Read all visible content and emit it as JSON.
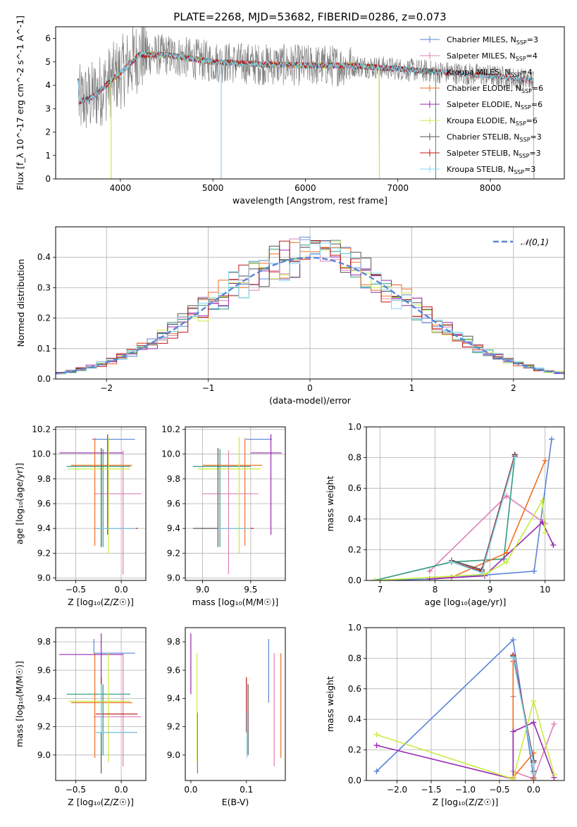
{
  "title": "PLATE=2268, MJD=53682, FIBERID=0286, z=0.073",
  "colors": {
    "Chabrier MILES": "#5b84d8",
    "Salpeter MILES": "#e080b8",
    "Kroupa MILES": "#2f9a80",
    "Chabrier ELODIE": "#f07020",
    "Salpeter ELODIE": "#9a28b0",
    "Kroupa ELODIE": "#c8ec40",
    "Chabrier STELIB": "#555555",
    "Salpeter STELIB": "#c01818",
    "Kroupa STELIB": "#80d8f0",
    "data": "#808080",
    "gaussian": "#5b84d8",
    "grid": "#b0b0b0"
  },
  "chart_data": [
    {
      "id": "spectrum",
      "type": "line",
      "xlabel": "wavelength [Angstrom, rest frame]",
      "ylabel": "Flux [f_λ 10^-17 erg cm^-2 s^-1 A^-1]",
      "xlim": [
        3300,
        8800
      ],
      "ylim": [
        0,
        6.5
      ],
      "xticks": [
        4000,
        5000,
        6000,
        7000,
        8000
      ],
      "yticks": [
        0,
        1,
        2,
        3,
        4,
        5,
        6
      ],
      "grid": false,
      "legend_position": "upper-right",
      "legend": [
        {
          "label": "Chabrier MILES, N",
          "sub": "SSP",
          "n": "=3"
        },
        {
          "label": "Salpeter MILES, N",
          "sub": "SSP",
          "n": "=4"
        },
        {
          "label": "Kroupa MILES, N",
          "sub": "SSP",
          "n": "=4"
        },
        {
          "label": "Chabrier ELODIE, N",
          "sub": "SSP",
          "n": "=6"
        },
        {
          "label": "Salpeter ELODIE, N",
          "sub": "SSP",
          "n": "=6"
        },
        {
          "label": "Kroupa ELODIE, N",
          "sub": "SSP",
          "n": "=6"
        },
        {
          "label": "Chabrier STELIB, N",
          "sub": "SSP",
          "n": "=3"
        },
        {
          "label": "Salpeter STELIB, N",
          "sub": "SSP",
          "n": "=3"
        },
        {
          "label": "Kroupa STELIB, N",
          "sub": "SSP",
          "n": "=3"
        }
      ],
      "data_range": [
        3550,
        8470
      ],
      "continuum": [
        [
          3550,
          3.3
        ],
        [
          3700,
          3.5
        ],
        [
          3900,
          4.2
        ],
        [
          4050,
          4.7
        ],
        [
          4200,
          5.3
        ],
        [
          4500,
          5.3
        ],
        [
          5000,
          5.0
        ],
        [
          5500,
          4.9
        ],
        [
          6000,
          4.85
        ],
        [
          6500,
          4.85
        ],
        [
          7000,
          4.7
        ],
        [
          7500,
          4.55
        ],
        [
          8000,
          4.4
        ],
        [
          8470,
          4.2
        ]
      ],
      "model_ranges": {
        "MILES": [
          3540,
          7410
        ],
        "ELODIE": [
          3900,
          6800
        ],
        "STELIB": [
          3540,
          8470
        ]
      }
    },
    {
      "id": "residuals",
      "type": "histogram",
      "xlabel": "(data-model)/error",
      "ylabel": "Normed distribution",
      "xlim": [
        -2.5,
        2.5
      ],
      "ylim": [
        0,
        0.5
      ],
      "xticks": [
        -2,
        -1,
        0,
        1,
        2
      ],
      "yticks": [
        0.0,
        0.1,
        0.2,
        0.3,
        0.4
      ],
      "grid": true,
      "legend_label": "𝒩(0,1)",
      "legend_position": "upper-right",
      "bin_width": 0.1
    },
    {
      "id": "z-age",
      "type": "scatter",
      "xlabel": "Z [log₁₀(Z/Z☉)]",
      "ylabel": "age  [log₁₀(age/yr)]",
      "xlim": [
        -0.72,
        0.27
      ],
      "ylim": [
        8.98,
        10.22
      ],
      "xticks": [
        -0.5,
        0.0
      ],
      "yticks": [
        9.0,
        9.2,
        9.4,
        9.6,
        9.8,
        10.0,
        10.2
      ],
      "grid": true,
      "points": [
        {
          "model": "Chabrier MILES",
          "x": -0.1,
          "xe": [
            -0.32,
            0.15
          ],
          "y": 10.12,
          "ye": [
            10.12,
            10.12
          ]
        },
        {
          "model": "Salpeter MILES",
          "x": 0.02,
          "xe": [
            -0.3,
            0.22
          ],
          "y": 9.68,
          "ye": [
            9.03,
            10.03
          ]
        },
        {
          "model": "Kroupa MILES",
          "x": -0.2,
          "xe": [
            -0.6,
            0.1
          ],
          "y": 9.9,
          "ye": [
            9.25,
            10.04
          ]
        },
        {
          "model": "Chabrier ELODIE",
          "x": -0.29,
          "xe": [
            -0.55,
            0.12
          ],
          "y": 9.91,
          "ye": [
            9.26,
            10.13
          ]
        },
        {
          "model": "Salpeter ELODIE",
          "x": -0.15,
          "xe": [
            -0.68,
            0.02
          ],
          "y": 10.01,
          "ye": [
            9.35,
            10.16
          ]
        },
        {
          "model": "Kroupa ELODIE",
          "x": -0.14,
          "xe": [
            -0.58,
            0.1
          ],
          "y": 9.88,
          "ye": [
            9.2,
            10.14
          ]
        },
        {
          "model": "Chabrier STELIB",
          "x": -0.22,
          "xe": [
            -0.28,
            0.17
          ],
          "y": 9.4,
          "ye": [
            9.25,
            10.05
          ]
        },
        {
          "model": "Salpeter STELIB",
          "x": -0.22,
          "xe": [
            -0.28,
            0.18
          ],
          "y": 9.4,
          "ye": [
            9.4,
            9.4
          ]
        },
        {
          "model": "Kroupa STELIB",
          "x": -0.22,
          "xe": [
            -0.28,
            0.16
          ],
          "y": 9.4,
          "ye": [
            9.4,
            9.4
          ]
        }
      ]
    },
    {
      "id": "mass-age",
      "type": "scatter",
      "xlabel": "mass [log₁₀(M/M☉)]",
      "ylabel": "",
      "xlim": [
        8.82,
        9.86
      ],
      "ylim": [
        8.98,
        10.22
      ],
      "xticks": [
        9.0,
        9.5
      ],
      "yticks": [
        9.0,
        9.2,
        9.4,
        9.6,
        9.8,
        10.0,
        10.2
      ],
      "grid": true,
      "points": [
        {
          "model": "Chabrier MILES",
          "x": 9.5,
          "xe": [
            9.45,
            9.72
          ],
          "y": 10.12,
          "ye": [
            10.12,
            10.12
          ]
        },
        {
          "model": "Salpeter MILES",
          "x": 9.27,
          "xe": [
            9.0,
            9.58
          ],
          "y": 9.68,
          "ye": [
            9.03,
            10.03
          ]
        },
        {
          "model": "Kroupa MILES",
          "x": 9.18,
          "xe": [
            8.9,
            9.5
          ],
          "y": 9.9,
          "ye": [
            9.25,
            10.04
          ]
        },
        {
          "model": "Chabrier ELODIE",
          "x": 9.44,
          "xe": [
            9.0,
            9.62
          ],
          "y": 9.91,
          "ye": [
            9.26,
            10.13
          ]
        },
        {
          "model": "Salpeter ELODIE",
          "x": 9.71,
          "xe": [
            9.5,
            9.82
          ],
          "y": 10.01,
          "ye": [
            9.35,
            10.16
          ]
        },
        {
          "model": "Kroupa ELODIE",
          "x": 9.38,
          "xe": [
            8.95,
            9.6
          ],
          "y": 9.88,
          "ye": [
            9.2,
            10.14
          ]
        },
        {
          "model": "Chabrier STELIB",
          "x": 9.16,
          "xe": [
            8.9,
            9.45
          ],
          "y": 9.4,
          "ye": [
            9.25,
            10.05
          ]
        },
        {
          "model": "Salpeter STELIB",
          "x": 9.16,
          "xe": [
            9.16,
            9.53
          ],
          "y": 9.4,
          "ye": [
            9.4,
            9.4
          ]
        },
        {
          "model": "Kroupa STELIB",
          "x": 9.16,
          "xe": [
            9.16,
            9.5
          ],
          "y": 9.4,
          "ye": [
            9.4,
            9.4
          ]
        }
      ]
    },
    {
      "id": "age-mass-weight",
      "type": "line",
      "xlabel": "age  [log₁₀(age/yr)]",
      "ylabel": "mass weight",
      "xlim": [
        6.75,
        10.35
      ],
      "ylim": [
        0,
        1.0
      ],
      "xticks": [
        7,
        8,
        9,
        10
      ],
      "yticks": [
        0.0,
        0.2,
        0.4,
        0.6,
        0.8,
        1.0
      ],
      "grid": true,
      "series": [
        {
          "model": "Chabrier MILES",
          "points": [
            [
              6.9,
              0.0
            ],
            [
              8.0,
              0.01
            ],
            [
              9.8,
              0.06
            ],
            [
              10.12,
              0.92
            ]
          ]
        },
        {
          "model": "Salpeter MILES",
          "points": [
            [
              7.9,
              0.06
            ],
            [
              9.3,
              0.55
            ],
            [
              10.0,
              0.37
            ]
          ]
        },
        {
          "model": "Kroupa MILES",
          "points": [
            [
              6.9,
              0.0
            ],
            [
              8.3,
              0.12
            ],
            [
              9.25,
              0.14
            ],
            [
              9.45,
              0.81
            ]
          ]
        },
        {
          "model": "Chabrier ELODIE",
          "points": [
            [
              7.9,
              0.01
            ],
            [
              8.3,
              0.02
            ],
            [
              9.3,
              0.18
            ],
            [
              10.0,
              0.78
            ]
          ]
        },
        {
          "model": "Salpeter ELODIE",
          "points": [
            [
              7.9,
              0.01
            ],
            [
              8.9,
              0.03
            ],
            [
              9.95,
              0.38
            ],
            [
              10.15,
              0.23
            ]
          ]
        },
        {
          "model": "Kroupa ELODIE",
          "points": [
            [
              6.9,
              0.0
            ],
            [
              8.9,
              0.04
            ],
            [
              9.3,
              0.12
            ],
            [
              9.95,
              0.52
            ],
            [
              10.0,
              0.31
            ]
          ]
        },
        {
          "model": "Chabrier STELIB",
          "points": [
            [
              8.3,
              0.13
            ],
            [
              8.85,
              0.07
            ],
            [
              9.45,
              0.82
            ]
          ]
        },
        {
          "model": "Salpeter STELIB",
          "points": [
            [
              8.3,
              0.12
            ],
            [
              8.85,
              0.06
            ],
            [
              9.45,
              0.81
            ]
          ]
        },
        {
          "model": "Kroupa STELIB",
          "points": [
            [
              8.3,
              0.12
            ],
            [
              8.85,
              0.05
            ],
            [
              9.45,
              0.8
            ]
          ]
        }
      ]
    },
    {
      "id": "z-mass",
      "type": "scatter",
      "xlabel": "Z [log₁₀(Z/Z☉)]",
      "ylabel": "mass [log₁₀(M/M☉)]",
      "xlim": [
        -0.72,
        0.27
      ],
      "ylim": [
        8.82,
        9.9
      ],
      "xticks": [
        -0.5,
        0.0
      ],
      "yticks": [
        9.0,
        9.2,
        9.4,
        9.6,
        9.8
      ],
      "grid": true,
      "points": [
        {
          "model": "Chabrier MILES",
          "x": -0.3,
          "xe": [
            -0.3,
            0.15
          ],
          "y": 9.72,
          "ye": [
            9.72,
            9.82
          ]
        },
        {
          "model": "Salpeter MILES",
          "x": 0.02,
          "xe": [
            -0.3,
            0.22
          ],
          "y": 9.27,
          "ye": [
            8.92,
            9.72
          ]
        },
        {
          "model": "Kroupa MILES",
          "x": -0.2,
          "xe": [
            -0.6,
            0.1
          ],
          "y": 9.43,
          "ye": [
            9.0,
            9.5
          ]
        },
        {
          "model": "Chabrier ELODIE",
          "x": -0.29,
          "xe": [
            -0.55,
            0.12
          ],
          "y": 9.37,
          "ye": [
            8.98,
            9.72
          ]
        },
        {
          "model": "Salpeter ELODIE",
          "x": -0.22,
          "xe": [
            -0.68,
            0.02
          ],
          "y": 9.71,
          "ye": [
            9.43,
            9.86
          ]
        },
        {
          "model": "Kroupa ELODIE",
          "x": -0.14,
          "xe": [
            -0.58,
            0.1
          ],
          "y": 9.38,
          "ye": [
            8.95,
            9.72
          ]
        },
        {
          "model": "Chabrier STELIB",
          "x": -0.22,
          "xe": [
            -0.28,
            0.17
          ],
          "y": 9.16,
          "ye": [
            8.87,
            9.5
          ]
        },
        {
          "model": "Salpeter STELIB",
          "x": -0.22,
          "xe": [
            -0.28,
            0.18
          ],
          "y": 9.29,
          "ye": [
            9.29,
            9.55
          ]
        },
        {
          "model": "Kroupa STELIB",
          "x": -0.22,
          "xe": [
            -0.28,
            0.16
          ],
          "y": 9.16,
          "ye": [
            9.16,
            9.5
          ]
        }
      ]
    },
    {
      "id": "ebv-mass",
      "type": "scatter",
      "xlabel": "E(B-V)",
      "ylabel": "",
      "xlim": [
        -0.01,
        0.17
      ],
      "ylim": [
        8.82,
        9.9
      ],
      "xticks": [
        0.0,
        0.1
      ],
      "yticks": [
        9.0,
        9.2,
        9.4,
        9.6,
        9.8
      ],
      "grid": false,
      "points": [
        {
          "model": "Chabrier MILES",
          "x": 0.14,
          "ye": [
            9.37,
            9.82
          ]
        },
        {
          "model": "Salpeter MILES",
          "x": 0.15,
          "ye": [
            8.92,
            9.72
          ]
        },
        {
          "model": "Kroupa MILES",
          "x": 0.012,
          "ye": [
            8.87,
            9.3
          ]
        },
        {
          "model": "Chabrier ELODIE",
          "x": 0.162,
          "ye": [
            8.98,
            9.72
          ]
        },
        {
          "model": "Salpeter ELODIE",
          "x": 0.0,
          "ye": [
            9.43,
            9.86
          ]
        },
        {
          "model": "Kroupa ELODIE",
          "x": 0.011,
          "ye": [
            8.95,
            9.72
          ]
        },
        {
          "model": "Chabrier STELIB",
          "x": 0.103,
          "ye": [
            9.0,
            9.5
          ]
        },
        {
          "model": "Salpeter STELIB",
          "x": 0.1,
          "ye": [
            9.16,
            9.55
          ]
        },
        {
          "model": "Kroupa STELIB",
          "x": 0.101,
          "ye": [
            8.98,
            9.3
          ]
        }
      ]
    },
    {
      "id": "z-mass-weight",
      "type": "line",
      "xlabel": "Z [log₁₀(Z/Z☉)]",
      "ylabel": "mass weight",
      "xlim": [
        -2.45,
        0.45
      ],
      "ylim": [
        0,
        1.0
      ],
      "xticks": [
        -2.0,
        -1.5,
        -1.0,
        -0.5,
        0.0
      ],
      "yticks": [
        0.0,
        0.2,
        0.4,
        0.6,
        0.8,
        1.0
      ],
      "grid": true,
      "series": [
        {
          "model": "Chabrier MILES",
          "points": [
            [
              -2.3,
              0.06
            ],
            [
              -0.3,
              0.92
            ],
            [
              0.0,
              0.02
            ]
          ]
        },
        {
          "model": "Salpeter MILES",
          "points": [
            [
              -0.3,
              0.55
            ],
            [
              -0.3,
              0.06
            ],
            [
              0.0,
              0.01
            ],
            [
              0.3,
              0.37
            ]
          ]
        },
        {
          "model": "Kroupa MILES",
          "points": [
            [
              -0.3,
              0.81
            ],
            [
              0.0,
              0.13
            ],
            [
              0.0,
              0.01
            ]
          ]
        },
        {
          "model": "Chabrier ELODIE",
          "points": [
            [
              -0.3,
              0.78
            ],
            [
              -0.3,
              0.02
            ],
            [
              0.0,
              0.18
            ],
            [
              0.0,
              0.01
            ]
          ]
        },
        {
          "model": "Salpeter ELODIE",
          "points": [
            [
              -2.3,
              0.23
            ],
            [
              -0.3,
              0.01
            ],
            [
              -0.3,
              0.32
            ],
            [
              0.0,
              0.38
            ],
            [
              0.3,
              0.02
            ]
          ]
        },
        {
          "model": "Kroupa ELODIE",
          "points": [
            [
              -2.3,
              0.3
            ],
            [
              -0.3,
              0.01
            ],
            [
              0.0,
              0.52
            ],
            [
              0.3,
              0.04
            ]
          ]
        },
        {
          "model": "Chabrier STELIB",
          "points": [
            [
              -0.3,
              0.82
            ],
            [
              0.0,
              0.13
            ],
            [
              0.0,
              0.06
            ]
          ]
        },
        {
          "model": "Salpeter STELIB",
          "points": [
            [
              -0.3,
              0.82
            ],
            [
              0.0,
              0.12
            ],
            [
              0.0,
              0.05
            ]
          ]
        },
        {
          "model": "Kroupa STELIB",
          "points": [
            [
              -0.3,
              0.8
            ],
            [
              0.0,
              0.11
            ],
            [
              0.0,
              0.05
            ]
          ]
        }
      ]
    }
  ]
}
